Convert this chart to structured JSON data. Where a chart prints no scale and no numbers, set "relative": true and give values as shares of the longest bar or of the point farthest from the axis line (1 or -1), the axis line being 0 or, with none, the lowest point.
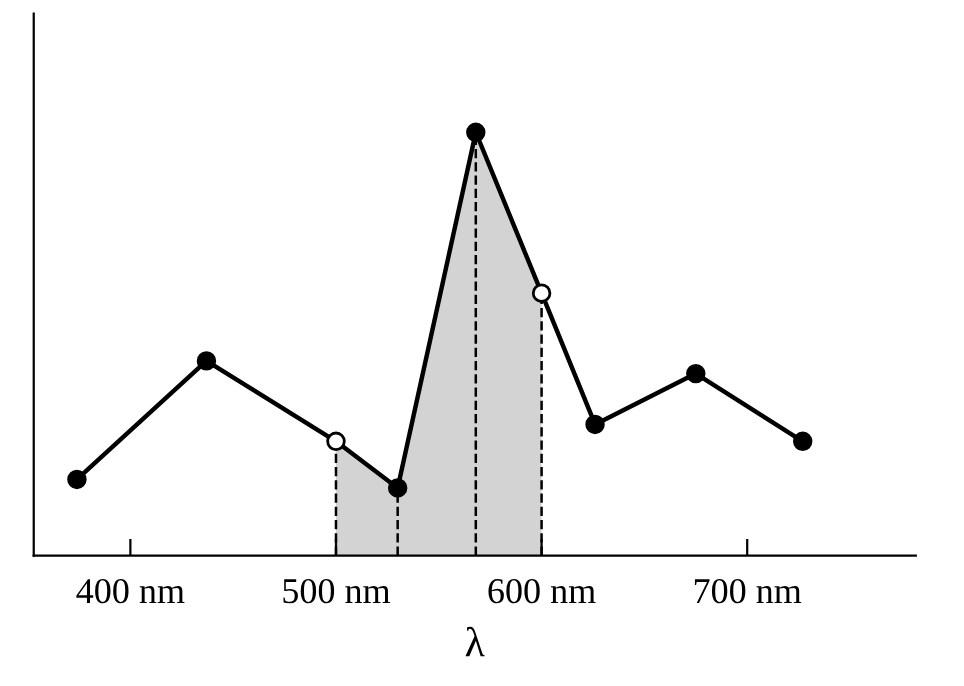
{
  "chart_data": {
    "type": "line",
    "relative": true,
    "xlabel": "λ",
    "xlim": [
      353,
      782
    ],
    "xticks": [
      {
        "value": 400,
        "label": "400 nm"
      },
      {
        "value": 500,
        "label": "500 nm"
      },
      {
        "value": 600,
        "label": "600 nm"
      },
      {
        "value": 700,
        "label": "700 nm"
      }
    ],
    "line_style": "solid",
    "grid": false,
    "tick_labels": "x",
    "series": [
      {
        "type": "area",
        "color": "#d3d3d3",
        "x": [
          500,
          530,
          568,
          600
        ],
        "values": [
          0.27,
          0.16,
          1.0,
          0.62
        ]
      },
      {
        "color": "#000000",
        "line_style": "dashed",
        "x": [
          500,
          500
        ],
        "values": [
          0,
          0.27
        ]
      },
      {
        "color": "#000000",
        "line_style": "dashed",
        "x": [
          530,
          530
        ],
        "values": [
          0,
          0.16
        ]
      },
      {
        "color": "#000000",
        "line_style": "dashed",
        "x": [
          568,
          568
        ],
        "values": [
          0,
          1.0
        ]
      },
      {
        "color": "#000000",
        "line_style": "dashed",
        "x": [
          600,
          600
        ],
        "values": [
          0,
          0.62
        ]
      },
      {
        "type": "line",
        "color": "#000000",
        "marker": "circle",
        "x": [
          374,
          437,
          500,
          530,
          568,
          600,
          626,
          675,
          727
        ],
        "values": [
          0.18,
          0.46,
          0.27,
          0.16,
          1.0,
          0.62,
          0.31,
          0.43,
          0.27
        ],
        "colors": [
          "#000000",
          "#000000",
          "#ffffff",
          "#000000",
          "#000000",
          "#ffffff",
          "#000000",
          "#000000",
          "#000000"
        ]
      }
    ]
  }
}
